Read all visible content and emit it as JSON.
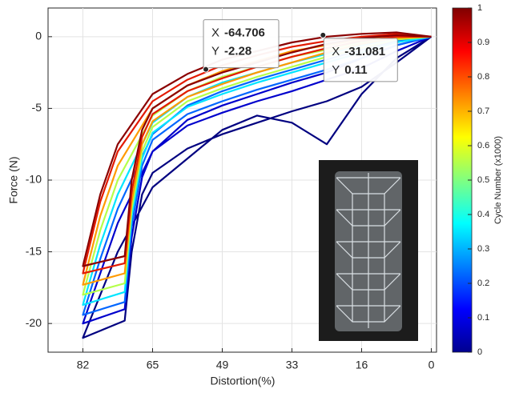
{
  "chart_data": {
    "type": "line",
    "x_label": "Distortion(%)",
    "y_label": "Force (N)",
    "xlim": [
      -110,
      1.5
    ],
    "ylim": [
      -22,
      2
    ],
    "xticks": [
      {
        "value": -100,
        "label": "82"
      },
      {
        "value": -80,
        "label": "65"
      },
      {
        "value": -60,
        "label": "49"
      },
      {
        "value": -40,
        "label": "33"
      },
      {
        "value": -20,
        "label": "16"
      },
      0
    ],
    "yticks": [
      0,
      -5,
      -10,
      -15,
      -20
    ],
    "grid": true,
    "x": [
      0,
      -10,
      -20,
      -30,
      -40,
      -50,
      -60,
      -70,
      -80,
      -90,
      -95,
      -100,
      -88,
      -86,
      -83,
      -80,
      -70,
      -60,
      -50,
      -40,
      -30,
      -20,
      -10,
      0
    ],
    "series": [
      {
        "color": "#000080",
        "values": [
          0,
          -1.5,
          -4,
          -7.5,
          -6,
          -5.5,
          -6.5,
          -8.5,
          -10.5,
          -15,
          -18,
          -21,
          -19.8,
          -15,
          -11,
          -9.5,
          -7.8,
          -6.8,
          -6,
          -5.2,
          -4.5,
          -3.5,
          -1.8,
          0
        ]
      },
      {
        "color": "#0000cc",
        "values": [
          0,
          -0.6,
          -1.5,
          -2.5,
          -3.2,
          -4,
          -4.8,
          -5.8,
          -8,
          -13,
          -16.5,
          -20,
          -19,
          -14,
          -9.8,
          -8,
          -6.2,
          -5.3,
          -4.5,
          -3.8,
          -3,
          -2.2,
          -1,
          0
        ]
      },
      {
        "color": "#0066ff",
        "values": [
          0,
          -0.3,
          -0.9,
          -1.6,
          -2.3,
          -3,
          -3.8,
          -4.8,
          -6.8,
          -12,
          -15.5,
          -19.4,
          -18.5,
          -13.2,
          -9,
          -7.2,
          -5.4,
          -4.5,
          -3.7,
          -3,
          -2.3,
          -1.5,
          -0.6,
          0
        ]
      },
      {
        "color": "#00e5ff",
        "values": [
          0,
          -0.1,
          -0.6,
          -1.2,
          -1.8,
          -2.5,
          -3.2,
          -4.2,
          -6,
          -11,
          -14.5,
          -18.7,
          -17.8,
          -12.5,
          -8.5,
          -6.7,
          -4.9,
          -4,
          -3.2,
          -2.5,
          -1.8,
          -1.1,
          -0.4,
          0
        ]
      },
      {
        "color": "#b5ff4a",
        "values": [
          0,
          0,
          -0.4,
          -0.9,
          -1.4,
          -2.1,
          -2.8,
          -3.8,
          -5.5,
          -10,
          -13.5,
          -18,
          -17.2,
          -12,
          -8,
          -6.3,
          -4.5,
          -3.6,
          -2.8,
          -2.1,
          -1.4,
          -0.8,
          -0.2,
          0
        ]
      },
      {
        "color": "#ff9a00",
        "values": [
          0,
          0.1,
          -0.2,
          -0.6,
          -1,
          -1.7,
          -2.4,
          -3.4,
          -5,
          -9,
          -12.5,
          -17.3,
          -16.5,
          -11.5,
          -7.5,
          -5.9,
          -4.2,
          -3.3,
          -2.5,
          -1.8,
          -1.1,
          -0.5,
          -0.1,
          0
        ]
      },
      {
        "color": "#e31a00",
        "values": [
          0,
          0.2,
          0,
          -0.3,
          -0.7,
          -1.3,
          -2,
          -3,
          -4.5,
          -8,
          -11.5,
          -16.5,
          -15.8,
          -10.8,
          -7,
          -5.4,
          -3.8,
          -2.9,
          -2.1,
          -1.4,
          -0.8,
          -0.3,
          0,
          0
        ]
      },
      {
        "color": "#8b0000",
        "values": [
          0,
          0.3,
          0.2,
          0,
          -0.4,
          -1,
          -1.6,
          -2.6,
          -4,
          -7.5,
          -11,
          -16,
          -15.3,
          -10,
          -6.5,
          -5,
          -3.4,
          -2.5,
          -1.8,
          -1.1,
          -0.5,
          -0.1,
          0.1,
          0
        ]
      }
    ],
    "datatips": [
      {
        "x_label": "X",
        "y_label": "Y",
        "x": -64.706,
        "y": -2.28
      },
      {
        "x_label": "X",
        "y_label": "Y",
        "x": -31.081,
        "y": 0.11
      }
    ],
    "colorbar": {
      "label": "Cycle Number (x1000)",
      "colormap": "jet",
      "lim": [
        0,
        1
      ],
      "ticks": [
        0,
        0.1,
        0.2,
        0.3,
        0.4,
        0.5,
        0.6,
        0.7,
        0.8,
        0.9,
        1
      ]
    }
  }
}
